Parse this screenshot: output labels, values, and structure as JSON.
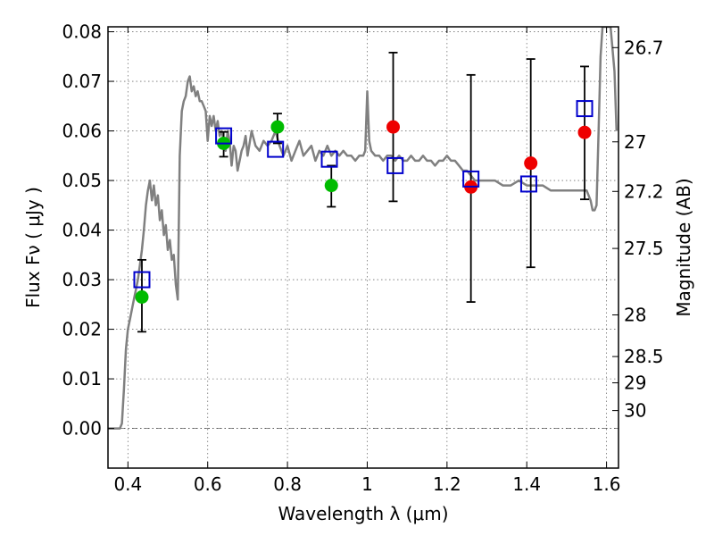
{
  "chart_data": {
    "type": "scatter",
    "xlabel": "Wavelength  λ (μm)",
    "ylabel": "Flux  Fν  ( μJy )",
    "ylabel_right": "Magnitude (AB)",
    "xlim": [
      0.35,
      1.63
    ],
    "ylim": [
      -0.008,
      0.081
    ],
    "x_ticks": [
      0.4,
      0.6,
      0.8,
      1.0,
      1.2,
      1.4,
      1.6
    ],
    "x_tick_labels": [
      "0.4",
      "0.6",
      "0.8",
      "1",
      "1.2",
      "1.4",
      "1.6"
    ],
    "y_ticks": [
      0.0,
      0.01,
      0.02,
      0.03,
      0.04,
      0.05,
      0.06,
      0.07,
      0.08
    ],
    "y_tick_labels": [
      "0.00",
      "0.01",
      "0.02",
      "0.03",
      "0.04",
      "0.05",
      "0.06",
      "0.07",
      "0.08"
    ],
    "right_ticks": [
      {
        "flux": 0.0768,
        "label": "26.7"
      },
      {
        "flux": 0.0578,
        "label": "27"
      },
      {
        "flux": 0.0478,
        "label": "27.2"
      },
      {
        "flux": 0.0363,
        "label": "27.5"
      },
      {
        "flux": 0.0229,
        "label": "28"
      },
      {
        "flux": 0.0145,
        "label": "28.5"
      },
      {
        "flux": 0.0092,
        "label": "29"
      },
      {
        "flux": 0.0036,
        "label": "30"
      }
    ],
    "grid": true,
    "colors": {
      "model": "#808080",
      "green": "#00bb00",
      "red": "#ee0000",
      "square": "#0000cc",
      "errorbar": "#000000"
    },
    "model_sed": [
      [
        0.35,
        0.0
      ],
      [
        0.38,
        0.0
      ],
      [
        0.385,
        0.001
      ],
      [
        0.39,
        0.008
      ],
      [
        0.395,
        0.016
      ],
      [
        0.4,
        0.02
      ],
      [
        0.405,
        0.022
      ],
      [
        0.41,
        0.024
      ],
      [
        0.415,
        0.026
      ],
      [
        0.42,
        0.028
      ],
      [
        0.425,
        0.03
      ],
      [
        0.43,
        0.033
      ],
      [
        0.435,
        0.036
      ],
      [
        0.44,
        0.04
      ],
      [
        0.445,
        0.045
      ],
      [
        0.45,
        0.048
      ],
      [
        0.455,
        0.05
      ],
      [
        0.46,
        0.046
      ],
      [
        0.465,
        0.049
      ],
      [
        0.47,
        0.045
      ],
      [
        0.475,
        0.047
      ],
      [
        0.48,
        0.042
      ],
      [
        0.485,
        0.044
      ],
      [
        0.49,
        0.039
      ],
      [
        0.495,
        0.041
      ],
      [
        0.5,
        0.036
      ],
      [
        0.505,
        0.038
      ],
      [
        0.51,
        0.034
      ],
      [
        0.515,
        0.035
      ],
      [
        0.52,
        0.029
      ],
      [
        0.525,
        0.026
      ],
      [
        0.53,
        0.055
      ],
      [
        0.535,
        0.064
      ],
      [
        0.54,
        0.066
      ],
      [
        0.545,
        0.067
      ],
      [
        0.55,
        0.07
      ],
      [
        0.555,
        0.071
      ],
      [
        0.56,
        0.068
      ],
      [
        0.565,
        0.069
      ],
      [
        0.57,
        0.067
      ],
      [
        0.575,
        0.068
      ],
      [
        0.58,
        0.066
      ],
      [
        0.585,
        0.066
      ],
      [
        0.59,
        0.065
      ],
      [
        0.595,
        0.064
      ],
      [
        0.6,
        0.058
      ],
      [
        0.605,
        0.063
      ],
      [
        0.61,
        0.061
      ],
      [
        0.615,
        0.063
      ],
      [
        0.62,
        0.06
      ],
      [
        0.625,
        0.062
      ],
      [
        0.63,
        0.059
      ],
      [
        0.635,
        0.06
      ],
      [
        0.64,
        0.058
      ],
      [
        0.645,
        0.056
      ],
      [
        0.65,
        0.06
      ],
      [
        0.655,
        0.058
      ],
      [
        0.66,
        0.053
      ],
      [
        0.665,
        0.057
      ],
      [
        0.67,
        0.056
      ],
      [
        0.675,
        0.052
      ],
      [
        0.68,
        0.054
      ],
      [
        0.685,
        0.056
      ],
      [
        0.69,
        0.057
      ],
      [
        0.695,
        0.059
      ],
      [
        0.7,
        0.055
      ],
      [
        0.71,
        0.06
      ],
      [
        0.72,
        0.057
      ],
      [
        0.73,
        0.056
      ],
      [
        0.74,
        0.058
      ],
      [
        0.75,
        0.057
      ],
      [
        0.76,
        0.058
      ],
      [
        0.77,
        0.06
      ],
      [
        0.78,
        0.057
      ],
      [
        0.79,
        0.055
      ],
      [
        0.8,
        0.057
      ],
      [
        0.81,
        0.054
      ],
      [
        0.82,
        0.056
      ],
      [
        0.83,
        0.058
      ],
      [
        0.84,
        0.055
      ],
      [
        0.85,
        0.056
      ],
      [
        0.86,
        0.057
      ],
      [
        0.87,
        0.054
      ],
      [
        0.88,
        0.056
      ],
      [
        0.89,
        0.055
      ],
      [
        0.9,
        0.057
      ],
      [
        0.91,
        0.055
      ],
      [
        0.92,
        0.056
      ],
      [
        0.93,
        0.055
      ],
      [
        0.94,
        0.056
      ],
      [
        0.95,
        0.055
      ],
      [
        0.96,
        0.055
      ],
      [
        0.97,
        0.054
      ],
      [
        0.98,
        0.055
      ],
      [
        0.99,
        0.055
      ],
      [
        0.995,
        0.056
      ],
      [
        1.0,
        0.068
      ],
      [
        1.005,
        0.058
      ],
      [
        1.01,
        0.056
      ],
      [
        1.02,
        0.055
      ],
      [
        1.03,
        0.055
      ],
      [
        1.04,
        0.054
      ],
      [
        1.05,
        0.055
      ],
      [
        1.06,
        0.055
      ],
      [
        1.07,
        0.054
      ],
      [
        1.08,
        0.055
      ],
      [
        1.09,
        0.054
      ],
      [
        1.1,
        0.054
      ],
      [
        1.11,
        0.055
      ],
      [
        1.12,
        0.054
      ],
      [
        1.13,
        0.054
      ],
      [
        1.14,
        0.055
      ],
      [
        1.15,
        0.054
      ],
      [
        1.16,
        0.054
      ],
      [
        1.17,
        0.053
      ],
      [
        1.18,
        0.054
      ],
      [
        1.19,
        0.054
      ],
      [
        1.2,
        0.055
      ],
      [
        1.21,
        0.054
      ],
      [
        1.22,
        0.054
      ],
      [
        1.23,
        0.053
      ],
      [
        1.24,
        0.052
      ],
      [
        1.25,
        0.052
      ],
      [
        1.26,
        0.051
      ],
      [
        1.27,
        0.05
      ],
      [
        1.28,
        0.05
      ],
      [
        1.3,
        0.05
      ],
      [
        1.32,
        0.05
      ],
      [
        1.34,
        0.049
      ],
      [
        1.36,
        0.049
      ],
      [
        1.38,
        0.05
      ],
      [
        1.4,
        0.049
      ],
      [
        1.42,
        0.049
      ],
      [
        1.44,
        0.049
      ],
      [
        1.46,
        0.048
      ],
      [
        1.48,
        0.048
      ],
      [
        1.5,
        0.048
      ],
      [
        1.52,
        0.048
      ],
      [
        1.54,
        0.048
      ],
      [
        1.55,
        0.048
      ],
      [
        1.56,
        0.046
      ],
      [
        1.565,
        0.044
      ],
      [
        1.57,
        0.044
      ],
      [
        1.575,
        0.045
      ],
      [
        1.58,
        0.06
      ],
      [
        1.585,
        0.075
      ],
      [
        1.59,
        0.081
      ],
      [
        1.6,
        0.081
      ],
      [
        1.61,
        0.081
      ],
      [
        1.62,
        0.072
      ],
      [
        1.625,
        0.06
      ]
    ],
    "green_points": [
      {
        "x": 0.435,
        "y": 0.0265
      },
      {
        "x": 0.64,
        "y": 0.0575
      },
      {
        "x": 0.775,
        "y": 0.0608
      },
      {
        "x": 0.91,
        "y": 0.049
      }
    ],
    "red_points": [
      {
        "x": 1.065,
        "y": 0.0608
      },
      {
        "x": 1.26,
        "y": 0.0487
      },
      {
        "x": 1.41,
        "y": 0.0535
      },
      {
        "x": 1.545,
        "y": 0.0597
      }
    ],
    "model_photometry": [
      {
        "x": 0.435,
        "y": 0.03
      },
      {
        "x": 0.64,
        "y": 0.059
      },
      {
        "x": 0.77,
        "y": 0.0563
      },
      {
        "x": 0.905,
        "y": 0.0543
      },
      {
        "x": 1.07,
        "y": 0.053
      },
      {
        "x": 1.26,
        "y": 0.0503
      },
      {
        "x": 1.405,
        "y": 0.0493
      },
      {
        "x": 1.545,
        "y": 0.0645
      }
    ],
    "error_bars": [
      {
        "x": 0.435,
        "low": 0.0195,
        "high": 0.034
      },
      {
        "x": 0.64,
        "low": 0.0548,
        "high": 0.0598
      },
      {
        "x": 0.775,
        "low": 0.0575,
        "high": 0.0635
      },
      {
        "x": 0.91,
        "low": 0.0447,
        "high": 0.053
      },
      {
        "x": 1.065,
        "low": 0.0458,
        "high": 0.0758
      },
      {
        "x": 1.26,
        "low": 0.0255,
        "high": 0.0713
      },
      {
        "x": 1.41,
        "low": 0.0325,
        "high": 0.0745
      },
      {
        "x": 1.545,
        "low": 0.0462,
        "high": 0.073
      }
    ]
  }
}
